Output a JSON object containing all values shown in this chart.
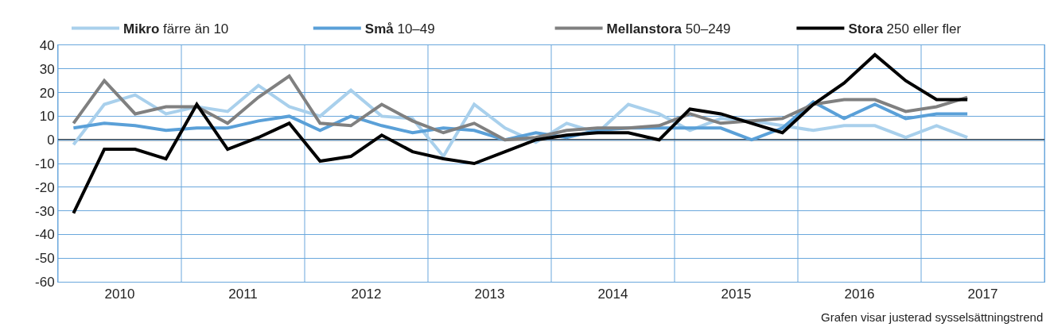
{
  "chart_data": {
    "type": "line",
    "x": [
      2010.125,
      2010.375,
      2010.625,
      2010.875,
      2011.125,
      2011.375,
      2011.625,
      2011.875,
      2012.125,
      2012.375,
      2012.625,
      2012.875,
      2013.125,
      2013.375,
      2013.625,
      2013.875,
      2014.125,
      2014.375,
      2014.625,
      2014.875,
      2015.125,
      2015.375,
      2015.625,
      2015.875,
      2016.125,
      2016.375,
      2016.625,
      2016.875,
      2017.125,
      2017.375
    ],
    "series": [
      {
        "name": "Mikro färre än 10",
        "color": "#a9d0ec",
        "values": [
          -2,
          15,
          19,
          11,
          14,
          12,
          23,
          14,
          10,
          21,
          10,
          9,
          -7,
          15,
          5,
          -1,
          7,
          3,
          15,
          11,
          4,
          9,
          8,
          6,
          4,
          6,
          6,
          1,
          6,
          1
        ]
      },
      {
        "name": "Små 10–49",
        "color": "#5aa0d8",
        "values": [
          5,
          7,
          6,
          4,
          5,
          5,
          8,
          10,
          4,
          10,
          6,
          3,
          5,
          4,
          0,
          3,
          1,
          4,
          5,
          5,
          5,
          5,
          0,
          5,
          16,
          9,
          15,
          9,
          11,
          11
        ]
      },
      {
        "name": "Mellanstora 50–249",
        "color": "#808080",
        "values": [
          7,
          25,
          11,
          14,
          14,
          7,
          18,
          27,
          7,
          6,
          15,
          8,
          3,
          7,
          0,
          1,
          4,
          5,
          5,
          6,
          11,
          7,
          8,
          9,
          15,
          17,
          17,
          12,
          14,
          18
        ]
      },
      {
        "name": "Stora 250 eller fler",
        "color": "#000000",
        "values": [
          -31,
          -4,
          -4,
          -8,
          15,
          -4,
          1,
          7,
          -9,
          -7,
          2,
          -5,
          -8,
          -10,
          -5,
          0,
          2,
          3,
          3,
          0,
          13,
          11,
          7,
          3,
          15,
          24,
          36,
          25,
          17,
          17
        ]
      }
    ],
    "xlim": [
      2010,
      2018
    ],
    "xticks": [
      {
        "value": 2010,
        "label": null
      },
      {
        "value": 2010.5,
        "label": "2010"
      },
      {
        "value": 2011,
        "label": null
      },
      {
        "value": 2011.5,
        "label": "2011"
      },
      {
        "value": 2012,
        "label": null
      },
      {
        "value": 2012.5,
        "label": "2012"
      },
      {
        "value": 2013,
        "label": null
      },
      {
        "value": 2013.5,
        "label": "2013"
      },
      {
        "value": 2014,
        "label": null
      },
      {
        "value": 2014.5,
        "label": "2014"
      },
      {
        "value": 2015,
        "label": null
      },
      {
        "value": 2015.5,
        "label": "2015"
      },
      {
        "value": 2016,
        "label": null
      },
      {
        "value": 2016.5,
        "label": "2016"
      },
      {
        "value": 2017,
        "label": null
      },
      {
        "value": 2017.5,
        "label": "2017"
      },
      {
        "value": 2018,
        "label": null
      }
    ],
    "ylim": [
      -60,
      40
    ],
    "yticks": [
      -60,
      -50,
      -40,
      -30,
      -20,
      -10,
      0,
      10,
      20,
      30,
      40
    ],
    "ref_lines": [
      {
        "axis": "y",
        "value": 0,
        "color": "#000000"
      }
    ],
    "grid": true,
    "legend": "top",
    "marker": "none",
    "line_style": "solid",
    "annotations": [
      "Grafen visar justerad sysselsättningstrend"
    ]
  }
}
